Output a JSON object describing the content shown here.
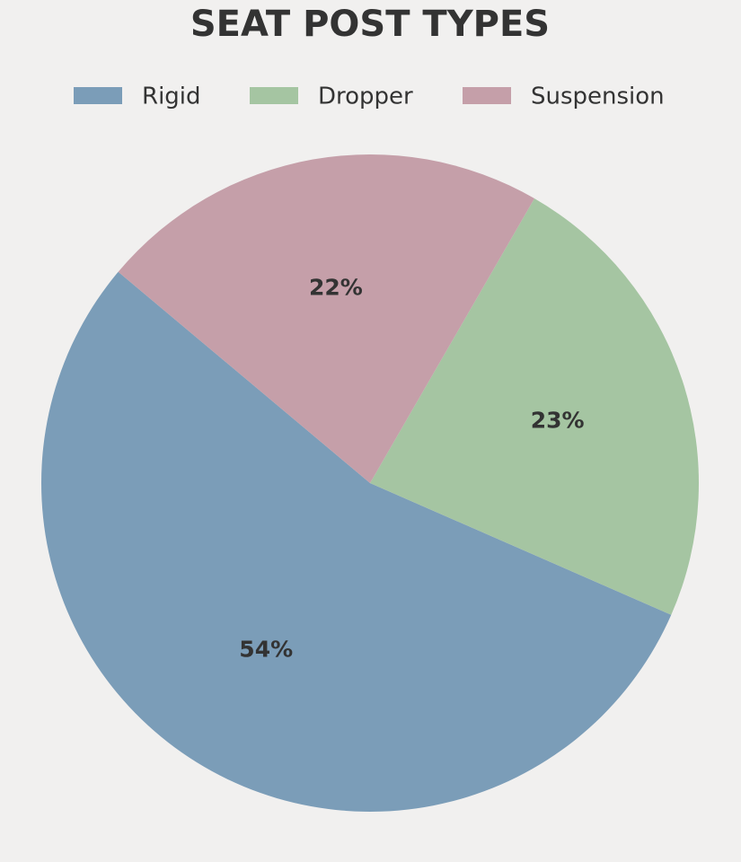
{
  "chart_data": {
    "type": "pie",
    "title": "SEAT POST TYPES",
    "categories": [
      "Rigid",
      "Dropper",
      "Suspension"
    ],
    "values": [
      54,
      23,
      22
    ],
    "value_labels": [
      "54%",
      "23%",
      "22%"
    ],
    "colors": [
      "#7b9db8",
      "#a5c5a2",
      "#c59fa9"
    ],
    "legend": "top"
  }
}
